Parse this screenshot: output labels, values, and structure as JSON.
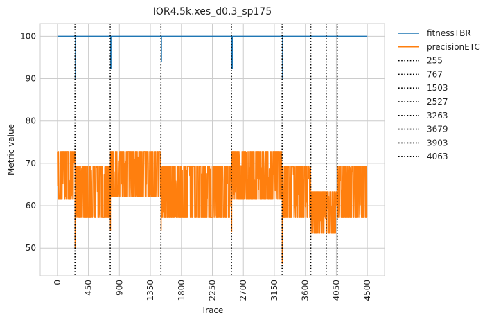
{
  "chart_data": {
    "type": "line",
    "title": "IOR4.5k.xes_d0.3_sp175",
    "xlabel": "Trace",
    "ylabel": "Metric value",
    "xlim": [
      -250,
      4750
    ],
    "ylim": [
      43.5,
      103
    ],
    "xticks": [
      0,
      450,
      900,
      1350,
      1800,
      2250,
      2700,
      3150,
      3600,
      4050,
      4500
    ],
    "yticks": [
      50,
      60,
      70,
      80,
      90,
      100
    ],
    "grid": true,
    "legend_position": "outside-right",
    "series": [
      {
        "name": "fitnessTBR",
        "color": "#1f77b4",
        "baseline": 100,
        "x_range": [
          0,
          4500
        ],
        "dips": [
          {
            "x_from": 255,
            "x_to": 265,
            "min": 90
          },
          {
            "x_from": 767,
            "x_to": 785,
            "min": 92.3
          },
          {
            "x_from": 1503,
            "x_to": 1512,
            "min": 94
          },
          {
            "x_from": 2527,
            "x_to": 2550,
            "min": 92.3
          },
          {
            "x_from": 3263,
            "x_to": 3270,
            "min": 90
          }
        ]
      },
      {
        "name": "precisionETC",
        "color": "#ff7f0e",
        "segments": [
          {
            "x_from": 0,
            "x_to": 255,
            "low": 61.5,
            "high": 72.8
          },
          {
            "x_from": 255,
            "x_to": 767,
            "low": 57.2,
            "high": 69.3
          },
          {
            "x_from": 767,
            "x_to": 1503,
            "low": 62.2,
            "high": 72.8
          },
          {
            "x_from": 1503,
            "x_to": 2527,
            "low": 57.2,
            "high": 69.3
          },
          {
            "x_from": 2527,
            "x_to": 3263,
            "low": 61.5,
            "high": 72.8
          },
          {
            "x_from": 3263,
            "x_to": 3679,
            "low": 57.2,
            "high": 69.3
          },
          {
            "x_from": 3679,
            "x_to": 4063,
            "low": 53.5,
            "high": 63.3
          },
          {
            "x_from": 4063,
            "x_to": 4500,
            "low": 57.2,
            "high": 69.3
          }
        ],
        "spikes": [
          {
            "x": 258,
            "min": 49.8
          },
          {
            "x": 770,
            "min": 54.0
          },
          {
            "x": 1506,
            "min": 54.2
          },
          {
            "x": 2530,
            "min": 53.8
          },
          {
            "x": 3266,
            "min": 46.3
          }
        ]
      }
    ],
    "vlines": [
      {
        "name": "255",
        "x": 255
      },
      {
        "name": "767",
        "x": 767
      },
      {
        "name": "1503",
        "x": 1503
      },
      {
        "name": "2527",
        "x": 2527
      },
      {
        "name": "3263",
        "x": 3263
      },
      {
        "name": "3679",
        "x": 3679
      },
      {
        "name": "3903",
        "x": 3903
      },
      {
        "name": "4063",
        "x": 4063
      }
    ]
  }
}
